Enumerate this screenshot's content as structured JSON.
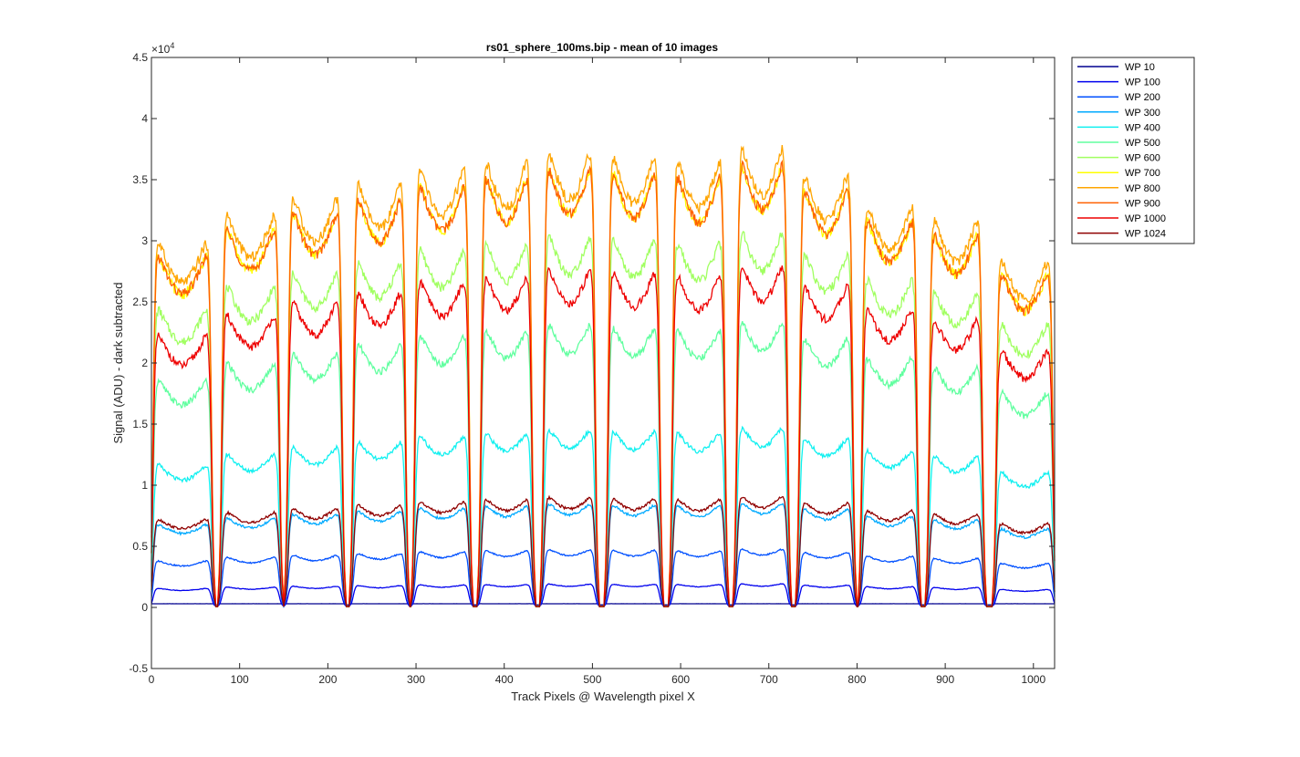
{
  "chart_data": {
    "type": "line",
    "title": "rs01_sphere_100ms.bip - mean of 10 images",
    "xlabel": "Track Pixels @ Wavelength pixel X",
    "ylabel": "Signal (ADU) - dark subtracted",
    "xlim": [
      0,
      1024
    ],
    "ylim": [
      -5000,
      45000
    ],
    "y_exponent_label": "×10",
    "y_exponent_power": "4",
    "xticks": [
      "0",
      "100",
      "200",
      "300",
      "400",
      "500",
      "600",
      "700",
      "800",
      "900",
      "1000"
    ],
    "xtick_values": [
      0,
      100,
      200,
      300,
      400,
      500,
      600,
      700,
      800,
      900,
      1000
    ],
    "yticks": [
      "-0.5",
      "0",
      "0.5",
      "1",
      "1.5",
      "2",
      "2.5",
      "3",
      "3.5",
      "4",
      "4.5"
    ],
    "ytick_values": [
      -5000,
      0,
      5000,
      10000,
      15000,
      20000,
      25000,
      30000,
      35000,
      40000,
      45000
    ],
    "grid": false,
    "legend_position": "outside-right-top",
    "fibers": [
      {
        "x_start": 0,
        "x_end": 70,
        "level": 0.78
      },
      {
        "x_start": 78,
        "x_end": 147,
        "level": 0.84
      },
      {
        "x_start": 153,
        "x_end": 218,
        "level": 0.88
      },
      {
        "x_start": 227,
        "x_end": 290,
        "level": 0.91
      },
      {
        "x_start": 297,
        "x_end": 362,
        "level": 0.94
      },
      {
        "x_start": 372,
        "x_end": 433,
        "level": 0.96
      },
      {
        "x_start": 443,
        "x_end": 505,
        "level": 0.98
      },
      {
        "x_start": 516,
        "x_end": 578,
        "level": 0.97
      },
      {
        "x_start": 589,
        "x_end": 652,
        "level": 0.96
      },
      {
        "x_start": 662,
        "x_end": 723,
        "level": 0.99
      },
      {
        "x_start": 733,
        "x_end": 797,
        "level": 0.93
      },
      {
        "x_start": 804,
        "x_end": 870,
        "level": 0.86
      },
      {
        "x_start": 880,
        "x_end": 944,
        "level": 0.83
      },
      {
        "x_start": 956,
        "x_end": 1024,
        "level": 0.74
      }
    ],
    "series": [
      {
        "name": "WP 10",
        "color": "#00008f",
        "peak": 300
      },
      {
        "name": "WP 100",
        "color": "#0000ee",
        "peak": 2100
      },
      {
        "name": "WP 200",
        "color": "#0050ff",
        "peak": 5200
      },
      {
        "name": "WP 300",
        "color": "#00aaff",
        "peak": 9300
      },
      {
        "name": "WP 400",
        "color": "#10f0f0",
        "peak": 16000
      },
      {
        "name": "WP 500",
        "color": "#60ff9f",
        "peak": 25500
      },
      {
        "name": "WP 600",
        "color": "#a0ff60",
        "peak": 33500
      },
      {
        "name": "WP 700",
        "color": "#ffff00",
        "peak": 39500
      },
      {
        "name": "WP 800",
        "color": "#ffa500",
        "peak": 41000
      },
      {
        "name": "WP 900",
        "color": "#ff6000",
        "peak": 39500
      },
      {
        "name": "WP 1000",
        "color": "#ee0000",
        "peak": 30500
      },
      {
        "name": "WP 1024",
        "color": "#8f0000",
        "peak": 9900
      }
    ]
  }
}
